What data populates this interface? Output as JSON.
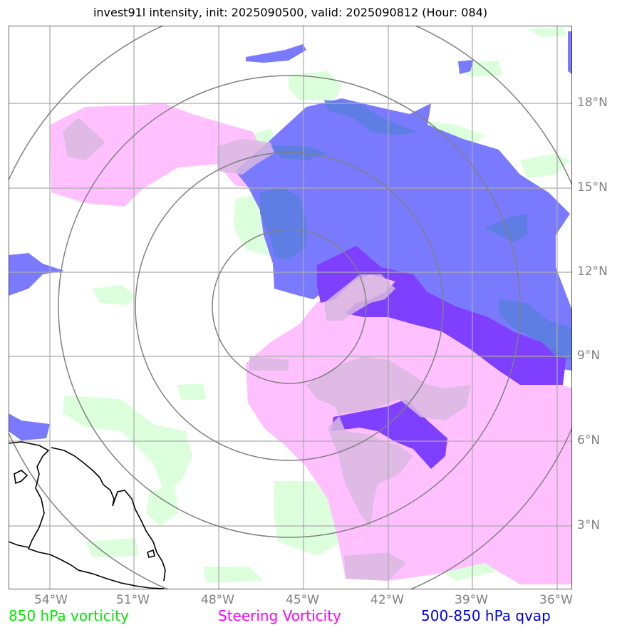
{
  "title": "invest91l intensity, init: 2025090500, valid: 2025090812 (Hour: 084)",
  "map": {
    "lon_labels": [
      "54°W",
      "51°W",
      "48°W",
      "45°W",
      "42°W",
      "39°W",
      "36°W"
    ],
    "lat_labels": [
      "18°N",
      "15°N",
      "12°N",
      "9°N",
      "6°N",
      "3°N"
    ],
    "range_rings_count": 4,
    "center": {
      "lon": "45.5°W",
      "lat": "10.8°N"
    }
  },
  "legend": {
    "green_label": "850 hPa vorticity",
    "magenta_label": "Steering Vorticity",
    "blue_label": "500-850 hPa qvap"
  },
  "colors": {
    "green": "#00e600",
    "magenta": "#ff00ff",
    "blue": "#0000dd",
    "fill_green": "#dcffdc",
    "fill_magenta": "#ffc0ff",
    "fill_blue": "#7a7aff",
    "fill_overlap": "#7f3fff"
  }
}
